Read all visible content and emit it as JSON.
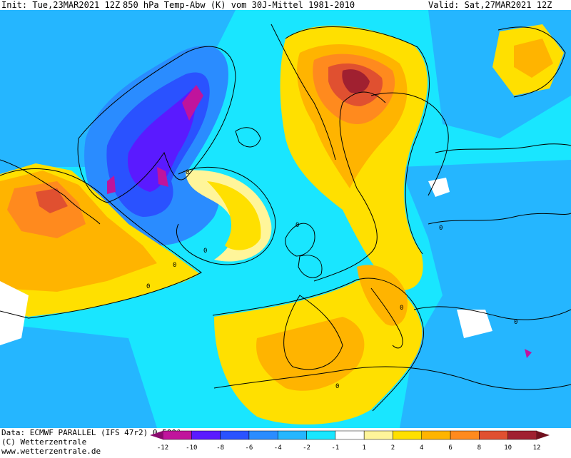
{
  "header": {
    "init": "Init: Tue,23MAR2021 12Z",
    "title": "850 hPa Temp-Abw (K) vom 30J-Mittel 1981-2010",
    "valid": "Valid: Sat,27MAR2021 12Z"
  },
  "footer": {
    "data_line": "Data: ECMWF PARALLEL (IFS 47r2) 0.500°",
    "copyright": "(C) Wetterzentrale",
    "url": "www.wetterzentrale.de"
  },
  "legend": {
    "ticks": [
      "-12",
      "-10",
      "-8",
      "-6",
      "-4",
      "-2",
      "-1",
      "1",
      "2",
      "4",
      "6",
      "8",
      "10",
      "12"
    ],
    "colors": [
      "#c0149c",
      "#5a1aff",
      "#2a52ff",
      "#2a8cff",
      "#25b6ff",
      "#19e6ff",
      "#ffffff",
      "#fff59a",
      "#ffe000",
      "#ffb400",
      "#ff8a1e",
      "#e05030",
      "#a02030"
    ],
    "arrow_left_color": "#8a0a6e",
    "arrow_right_color": "#70101e"
  },
  "map": {
    "contour_labels": [
      "0",
      "0",
      "0",
      "0",
      "0",
      "0",
      "0",
      "0",
      "0"
    ]
  }
}
